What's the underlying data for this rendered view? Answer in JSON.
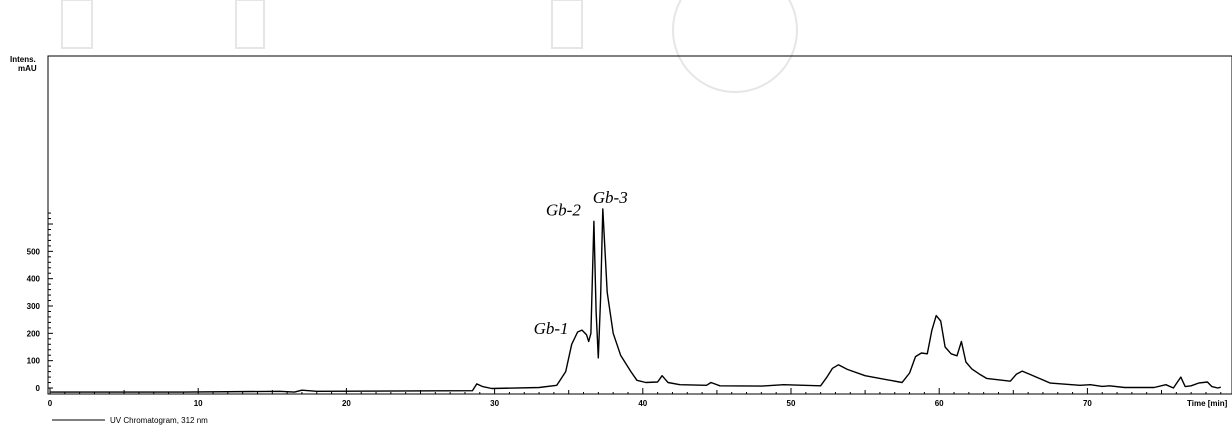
{
  "chart_data": {
    "type": "line",
    "ylabel_line1": "Intens.",
    "ylabel_line2": "mAU",
    "xlabel": "Time [min]",
    "xlim": [
      0,
      79
    ],
    "ylim": [
      -20,
      690
    ],
    "x_ticks": [
      0,
      10,
      20,
      30,
      40,
      50,
      60,
      70
    ],
    "y_ticks": [
      0,
      100,
      200,
      300,
      400,
      500
    ],
    "grid": false,
    "legend_position": "bottom-left",
    "series": [
      {
        "name": "UV Chromatogram, 312 nm",
        "color": "#000000",
        "x": [
          0,
          4.5,
          9,
          15.5,
          16.5,
          17,
          18,
          28.5,
          28.8,
          29.2,
          29.8,
          33,
          34.2,
          34.8,
          35.2,
          35.6,
          35.9,
          36.2,
          36.35,
          36.5,
          36.7,
          36.85,
          37.0,
          37.15,
          37.3,
          37.6,
          38.0,
          38.5,
          39.2,
          39.6,
          40.2,
          41.0,
          41.3,
          41.7,
          42.5,
          44.3,
          44.6,
          45.2,
          48,
          49.5,
          52,
          52.4,
          52.8,
          53.2,
          53.8,
          55,
          57.5,
          58,
          58.4,
          58.8,
          59.2,
          59.5,
          59.8,
          60.1,
          60.4,
          60.8,
          61.2,
          61.5,
          61.8,
          62.2,
          62.8,
          63.2,
          64,
          64.8,
          65.2,
          65.6,
          66.2,
          67.5,
          69.5,
          70.2,
          71,
          71.5,
          72.5,
          74.5,
          75.3,
          75.8,
          76.3,
          76.6,
          77.0,
          77.5,
          78.1,
          78.4,
          78.8,
          79
        ],
        "y": [
          -15,
          -15,
          -15,
          -12,
          -15,
          -8,
          -12,
          -10,
          15,
          5,
          -2,
          2,
          10,
          60,
          160,
          205,
          212,
          195,
          170,
          200,
          610,
          280,
          110,
          330,
          655,
          350,
          200,
          120,
          60,
          28,
          20,
          22,
          45,
          20,
          12,
          10,
          20,
          8,
          7,
          12,
          8,
          38,
          72,
          85,
          68,
          45,
          20,
          55,
          115,
          128,
          125,
          210,
          265,
          245,
          150,
          125,
          118,
          170,
          95,
          70,
          48,
          35,
          30,
          25,
          50,
          62,
          48,
          18,
          10,
          12,
          6,
          8,
          2,
          2,
          12,
          0,
          40,
          5,
          8,
          18,
          22,
          5,
          0,
          3
        ]
      }
    ],
    "annotations": [
      {
        "text": "Gb-1",
        "x": 35.6,
        "y": 212
      },
      {
        "text": "Gb-2",
        "x": 36.7,
        "y": 610
      },
      {
        "text": "Gb-3",
        "x": 37.3,
        "y": 655
      }
    ]
  }
}
